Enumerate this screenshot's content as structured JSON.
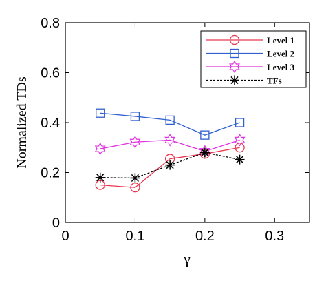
{
  "chart_data": {
    "type": "line",
    "xlabel": "γ",
    "ylabel": "Normalized TDs",
    "xlim": [
      0,
      0.35
    ],
    "ylim": [
      0,
      0.8
    ],
    "xticks": [
      0,
      0.1,
      0.2,
      0.3
    ],
    "yticks": [
      0,
      0.2,
      0.4,
      0.6,
      0.8
    ],
    "xtick_labels": [
      "0",
      "0.1",
      "0.2",
      "0.3"
    ],
    "ytick_labels": [
      "0",
      "0.2",
      "0.4",
      "0.6",
      "0.8"
    ],
    "grid": false,
    "legend_position": "top-right",
    "x": [
      0.05,
      0.1,
      0.15,
      0.2,
      0.25
    ],
    "series": [
      {
        "name": "Level 1",
        "values": [
          0.15,
          0.14,
          0.255,
          0.275,
          0.3
        ],
        "color": "#e8374f",
        "marker": "circle",
        "line": "solid"
      },
      {
        "name": "Level 2",
        "values": [
          0.438,
          0.425,
          0.41,
          0.35,
          0.4
        ],
        "color": "#3060d0",
        "marker": "square",
        "line": "solid"
      },
      {
        "name": "Level 3",
        "values": [
          0.295,
          0.322,
          0.33,
          0.285,
          0.33
        ],
        "color": "#e030e0",
        "marker": "hexagram",
        "line": "solid"
      },
      {
        "name": "TFs",
        "values": [
          0.18,
          0.178,
          0.23,
          0.28,
          0.252
        ],
        "color": "#000000",
        "marker": "asterisk",
        "line": "dotted"
      }
    ]
  }
}
